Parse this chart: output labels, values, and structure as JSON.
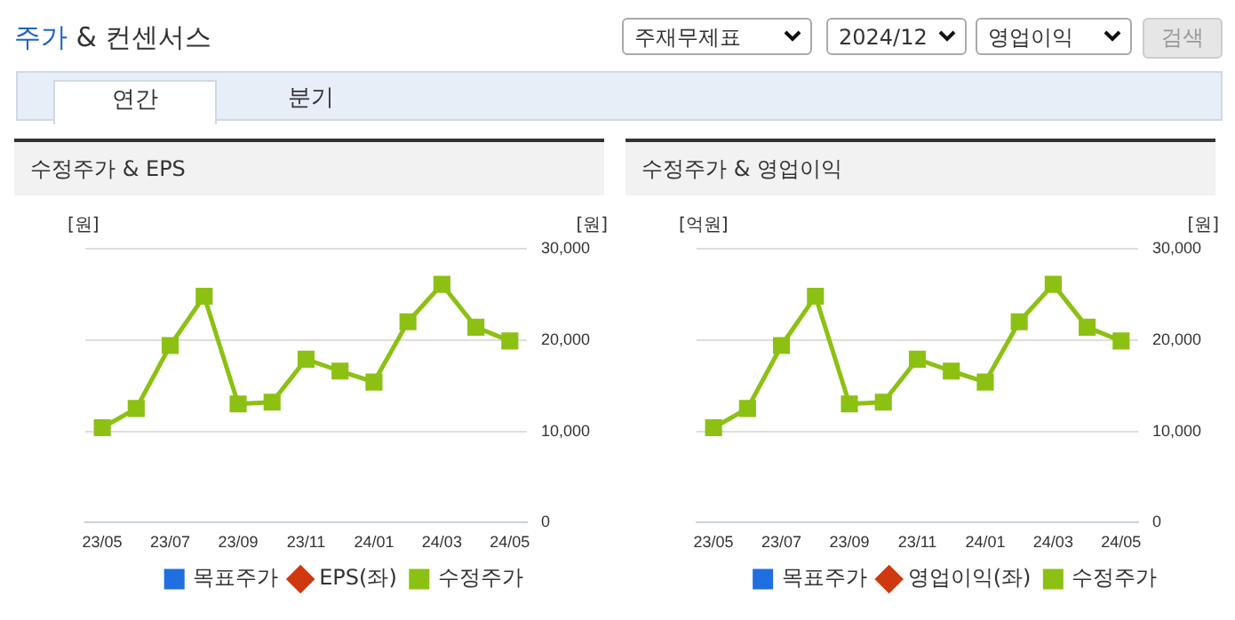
{
  "chart_data": [
    {
      "type": "line",
      "title": "수정주가 & EPS",
      "ylabel": "[원]",
      "y2label": "[원]",
      "annotations": [
        "주가",
        "& 컨센서스",
        "주재무제표",
        "2024/12",
        "영업이익",
        "검색",
        "연간",
        "분기"
      ],
      "categories": [
        "23/05",
        null,
        "23/07",
        null,
        "23/09",
        null,
        "23/11",
        null,
        "24/01",
        null,
        "24/03",
        null,
        "24/05"
      ],
      "series": [
        {
          "name": "목표주가",
          "color": "#1f6fe0",
          "marker": "square",
          "axis": "y",
          "values": [
            null,
            null,
            null,
            null,
            null,
            null,
            null,
            null,
            null,
            null,
            null,
            null,
            null
          ]
        },
        {
          "name": "EPS(좌)",
          "color": "#d0380f",
          "marker": "diamond",
          "axis": "y",
          "values": [
            null,
            null,
            null,
            null,
            null,
            null,
            null,
            null,
            null,
            null,
            null,
            null,
            null
          ]
        },
        {
          "name": "수정주가",
          "color": "#8cc114",
          "marker": "square",
          "axis": "y2",
          "values": [
            10400,
            12500,
            19400,
            24800,
            13000,
            13200,
            17900,
            16600,
            15400,
            22000,
            26100,
            21400,
            19900
          ]
        }
      ],
      "y2lim": [
        0,
        30000
      ],
      "y2ticks": [
        0,
        {
          "value": 10000,
          "label": "10,000"
        },
        {
          "value": 20000,
          "label": "20,000"
        },
        {
          "value": 30000,
          "label": "30,000"
        }
      ],
      "grid": "y",
      "legend": "bottom"
    },
    {
      "type": "line",
      "title": "수정주가 & 영업이익",
      "ylabel": "[억원]",
      "y2label": "[원]",
      "categories": [
        "23/05",
        null,
        "23/07",
        null,
        "23/09",
        null,
        "23/11",
        null,
        "24/01",
        null,
        "24/03",
        null,
        "24/05"
      ],
      "series": [
        {
          "name": "목표주가",
          "color": "#1f6fe0",
          "marker": "square",
          "axis": "y",
          "values": [
            null,
            null,
            null,
            null,
            null,
            null,
            null,
            null,
            null,
            null,
            null,
            null,
            null
          ]
        },
        {
          "name": "영업이익(좌)",
          "color": "#d0380f",
          "marker": "diamond",
          "axis": "y",
          "values": [
            null,
            null,
            null,
            null,
            null,
            null,
            null,
            null,
            null,
            null,
            null,
            null,
            null
          ]
        },
        {
          "name": "수정주가",
          "color": "#8cc114",
          "marker": "square",
          "axis": "y2",
          "values": [
            10400,
            12500,
            19400,
            24800,
            13000,
            13200,
            17900,
            16600,
            15400,
            22000,
            26100,
            21400,
            19900
          ]
        }
      ],
      "y2lim": [
        0,
        30000
      ],
      "y2ticks": [
        0,
        {
          "value": 10000,
          "label": "10,000"
        },
        {
          "value": 20000,
          "label": "20,000"
        },
        {
          "value": 30000,
          "label": "30,000"
        }
      ],
      "grid": "y",
      "legend": "bottom"
    }
  ]
}
